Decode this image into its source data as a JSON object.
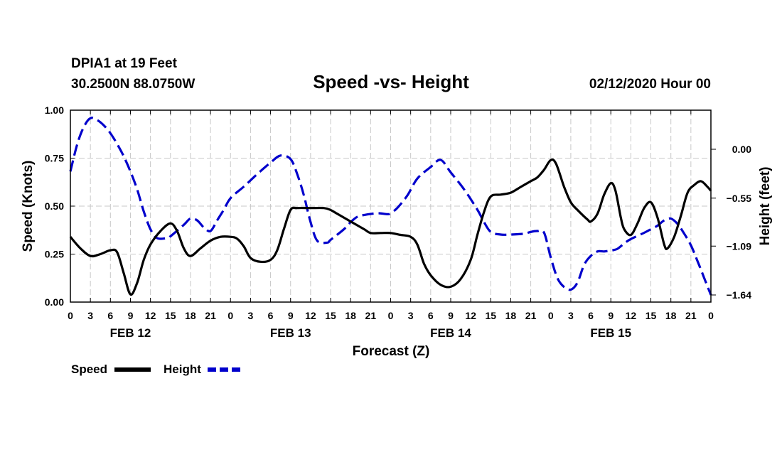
{
  "chart_data": {
    "type": "line",
    "station": "DPIA1 at 19 Feet",
    "location": "30.2500N 88.0750W",
    "title": "Speed -vs- Height",
    "run": "02/12/2020 Hour 00",
    "xlabel": "Forecast (Z)",
    "ylabel_left": "Speed (Knots)",
    "ylabel_right": "Height (feet)",
    "x_hours": [
      0,
      96
    ],
    "ylim_left": [
      0,
      1
    ],
    "ylim_right": [
      -1.72,
      0.44
    ],
    "x_tick_labels": [
      "0",
      "3",
      "6",
      "9",
      "12",
      "15",
      "18",
      "21",
      "0",
      "3",
      "6",
      "9",
      "12",
      "15",
      "18",
      "21",
      "0",
      "3",
      "6",
      "9",
      "12",
      "15",
      "18",
      "21",
      "0",
      "3",
      "6",
      "9",
      "12",
      "15",
      "18",
      "21",
      "0"
    ],
    "date_labels": [
      {
        "label": "FEB 12",
        "hour": 9
      },
      {
        "label": "FEB 13",
        "hour": 33
      },
      {
        "label": "FEB 14",
        "hour": 57
      },
      {
        "label": "FEB 15",
        "hour": 81
      }
    ],
    "left_ticks": [
      {
        "label": "0.00",
        "value": 0
      },
      {
        "label": "0.25",
        "value": 0.25
      },
      {
        "label": "0.50",
        "value": 0.5
      },
      {
        "label": "0.75",
        "value": 0.75
      },
      {
        "label": "1.00",
        "value": 1.0
      }
    ],
    "right_ticks": [
      {
        "label": "0.00",
        "value": 0.0
      },
      {
        "label": "−0.55",
        "value": -0.55
      },
      {
        "label": "−1.09",
        "value": -1.09
      },
      {
        "label": "−1.64",
        "value": -1.64
      }
    ],
    "grid": true,
    "legend": [
      {
        "name": "Speed",
        "color": "#000000",
        "style": "solid"
      },
      {
        "name": "Height",
        "color": "#0000cc",
        "style": "dashed"
      }
    ],
    "series": [
      {
        "name": "Speed",
        "axis": "left",
        "color": "#000000",
        "points": [
          [
            0,
            0.34
          ],
          [
            1.5,
            0.28
          ],
          [
            3,
            0.24
          ],
          [
            4.5,
            0.25
          ],
          [
            6,
            0.27
          ],
          [
            7,
            0.26
          ],
          [
            8,
            0.15
          ],
          [
            9,
            0.04
          ],
          [
            10,
            0.1
          ],
          [
            11,
            0.22
          ],
          [
            12,
            0.3
          ],
          [
            13.5,
            0.37
          ],
          [
            15,
            0.41
          ],
          [
            16,
            0.37
          ],
          [
            17,
            0.28
          ],
          [
            18,
            0.24
          ],
          [
            19.5,
            0.28
          ],
          [
            21,
            0.32
          ],
          [
            22.5,
            0.34
          ],
          [
            24,
            0.34
          ],
          [
            25,
            0.33
          ],
          [
            26,
            0.29
          ],
          [
            27,
            0.23
          ],
          [
            28.5,
            0.21
          ],
          [
            30,
            0.22
          ],
          [
            31,
            0.27
          ],
          [
            32,
            0.38
          ],
          [
            33,
            0.48
          ],
          [
            34,
            0.49
          ],
          [
            36,
            0.49
          ],
          [
            38,
            0.49
          ],
          [
            39,
            0.48
          ],
          [
            40,
            0.46
          ],
          [
            42,
            0.42
          ],
          [
            44,
            0.38
          ],
          [
            45,
            0.36
          ],
          [
            46.5,
            0.36
          ],
          [
            48,
            0.36
          ],
          [
            49.5,
            0.35
          ],
          [
            51,
            0.34
          ],
          [
            52,
            0.3
          ],
          [
            53,
            0.2
          ],
          [
            54,
            0.14
          ],
          [
            55.5,
            0.09
          ],
          [
            57,
            0.08
          ],
          [
            58.5,
            0.12
          ],
          [
            60,
            0.22
          ],
          [
            61,
            0.35
          ],
          [
            62,
            0.47
          ],
          [
            63,
            0.55
          ],
          [
            64.5,
            0.56
          ],
          [
            66,
            0.57
          ],
          [
            67.5,
            0.6
          ],
          [
            69,
            0.63
          ],
          [
            70,
            0.65
          ],
          [
            71,
            0.69
          ],
          [
            72,
            0.74
          ],
          [
            72.8,
            0.72
          ],
          [
            74,
            0.6
          ],
          [
            75,
            0.52
          ],
          [
            76,
            0.48
          ],
          [
            77.5,
            0.43
          ],
          [
            78,
            0.42
          ],
          [
            79,
            0.46
          ],
          [
            80,
            0.56
          ],
          [
            81,
            0.62
          ],
          [
            81.7,
            0.58
          ],
          [
            82.5,
            0.44
          ],
          [
            83,
            0.38
          ],
          [
            84,
            0.35
          ],
          [
            85,
            0.41
          ],
          [
            86,
            0.49
          ],
          [
            87,
            0.52
          ],
          [
            88,
            0.44
          ],
          [
            89,
            0.3
          ],
          [
            89.5,
            0.28
          ],
          [
            90.5,
            0.34
          ],
          [
            91.5,
            0.45
          ],
          [
            92.5,
            0.57
          ],
          [
            93.5,
            0.61
          ],
          [
            94.5,
            0.63
          ],
          [
            95.5,
            0.6
          ],
          [
            96,
            0.58
          ]
        ]
      },
      {
        "name": "Height",
        "axis": "right",
        "color": "#0000cc",
        "points": [
          [
            0,
            -0.25
          ],
          [
            1,
            0.05
          ],
          [
            2,
            0.25
          ],
          [
            3,
            0.35
          ],
          [
            4,
            0.33
          ],
          [
            5,
            0.27
          ],
          [
            6,
            0.18
          ],
          [
            7,
            0.06
          ],
          [
            8,
            -0.08
          ],
          [
            9,
            -0.25
          ],
          [
            10,
            -0.45
          ],
          [
            11,
            -0.7
          ],
          [
            12,
            -0.9
          ],
          [
            13,
            -1.0
          ],
          [
            14.5,
            -1.0
          ],
          [
            15,
            -0.98
          ],
          [
            17,
            -0.85
          ],
          [
            18,
            -0.78
          ],
          [
            19,
            -0.8
          ],
          [
            20,
            -0.88
          ],
          [
            21,
            -0.92
          ],
          [
            22,
            -0.8
          ],
          [
            23,
            -0.68
          ],
          [
            24,
            -0.55
          ],
          [
            26,
            -0.42
          ],
          [
            28,
            -0.28
          ],
          [
            30,
            -0.15
          ],
          [
            31.5,
            -0.07
          ],
          [
            33,
            -0.11
          ],
          [
            34,
            -0.28
          ],
          [
            35,
            -0.52
          ],
          [
            36,
            -0.82
          ],
          [
            37,
            -1.03
          ],
          [
            38.5,
            -1.05
          ],
          [
            39,
            -1.02
          ],
          [
            41,
            -0.9
          ],
          [
            42,
            -0.82
          ],
          [
            43,
            -0.76
          ],
          [
            44,
            -0.74
          ],
          [
            46,
            -0.72
          ],
          [
            47.5,
            -0.73
          ],
          [
            48,
            -0.72
          ],
          [
            49,
            -0.66
          ],
          [
            50.5,
            -0.52
          ],
          [
            52,
            -0.33
          ],
          [
            54,
            -0.2
          ],
          [
            55.5,
            -0.12
          ],
          [
            57,
            -0.26
          ],
          [
            59,
            -0.45
          ],
          [
            61,
            -0.68
          ],
          [
            62,
            -0.82
          ],
          [
            63,
            -0.93
          ],
          [
            64.5,
            -0.96
          ],
          [
            66,
            -0.96
          ],
          [
            68,
            -0.95
          ],
          [
            69,
            -0.93
          ],
          [
            70,
            -0.92
          ],
          [
            71,
            -0.94
          ],
          [
            72,
            -1.22
          ],
          [
            73,
            -1.45
          ],
          [
            74,
            -1.55
          ],
          [
            75,
            -1.58
          ],
          [
            76,
            -1.5
          ],
          [
            77,
            -1.3
          ],
          [
            78,
            -1.2
          ],
          [
            79,
            -1.15
          ],
          [
            80,
            -1.15
          ],
          [
            81,
            -1.14
          ],
          [
            82,
            -1.12
          ],
          [
            83,
            -1.06
          ],
          [
            84,
            -1.01
          ],
          [
            86,
            -0.94
          ],
          [
            87,
            -0.9
          ],
          [
            88,
            -0.86
          ],
          [
            89,
            -0.8
          ],
          [
            90,
            -0.78
          ],
          [
            91,
            -0.84
          ],
          [
            92,
            -0.95
          ],
          [
            93,
            -1.08
          ],
          [
            94,
            -1.26
          ],
          [
            95,
            -1.45
          ],
          [
            96,
            -1.64
          ]
        ]
      }
    ]
  }
}
